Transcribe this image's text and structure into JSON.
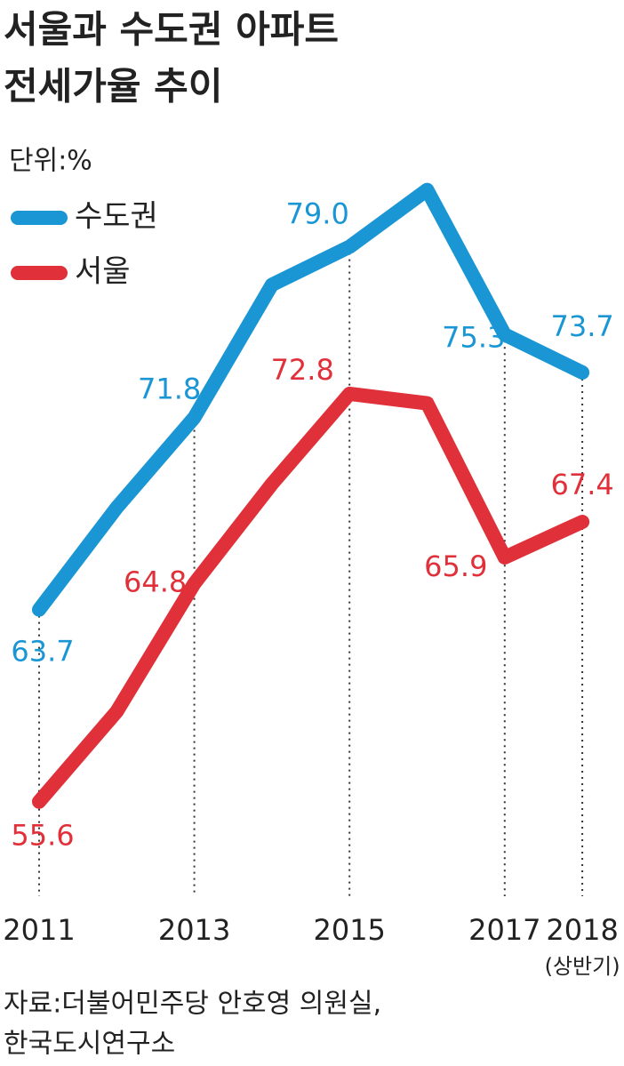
{
  "chart_data": {
    "type": "line",
    "title": [
      "서울과 수도권 아파트",
      "전세가율 추이"
    ],
    "unit_label": "단위:%",
    "categories": [
      "2011",
      null,
      "2013",
      null,
      "2015",
      null,
      "2017",
      "2018"
    ],
    "category_note": "(상반기)",
    "series": [
      {
        "name": "수도권",
        "color": "#1a96d4",
        "values": [
          63.7,
          68.0,
          71.8,
          77.4,
          79.0,
          81.4,
          75.3,
          73.7
        ],
        "value_labels": [
          "63.7",
          null,
          "71.8",
          null,
          "79.0",
          null,
          "75.3",
          "73.7"
        ]
      },
      {
        "name": "서울",
        "color": "#e0313a",
        "values": [
          55.6,
          59.4,
          64.8,
          69.0,
          72.8,
          72.4,
          65.9,
          67.4
        ],
        "value_labels": [
          "55.6",
          null,
          "64.8",
          null,
          "72.8",
          null,
          "65.9",
          "67.4"
        ]
      }
    ],
    "ylim": [
      50,
      85
    ],
    "source": [
      "자료:더불어민주당 안호영 의원실,",
      "한국도시연구소"
    ]
  }
}
